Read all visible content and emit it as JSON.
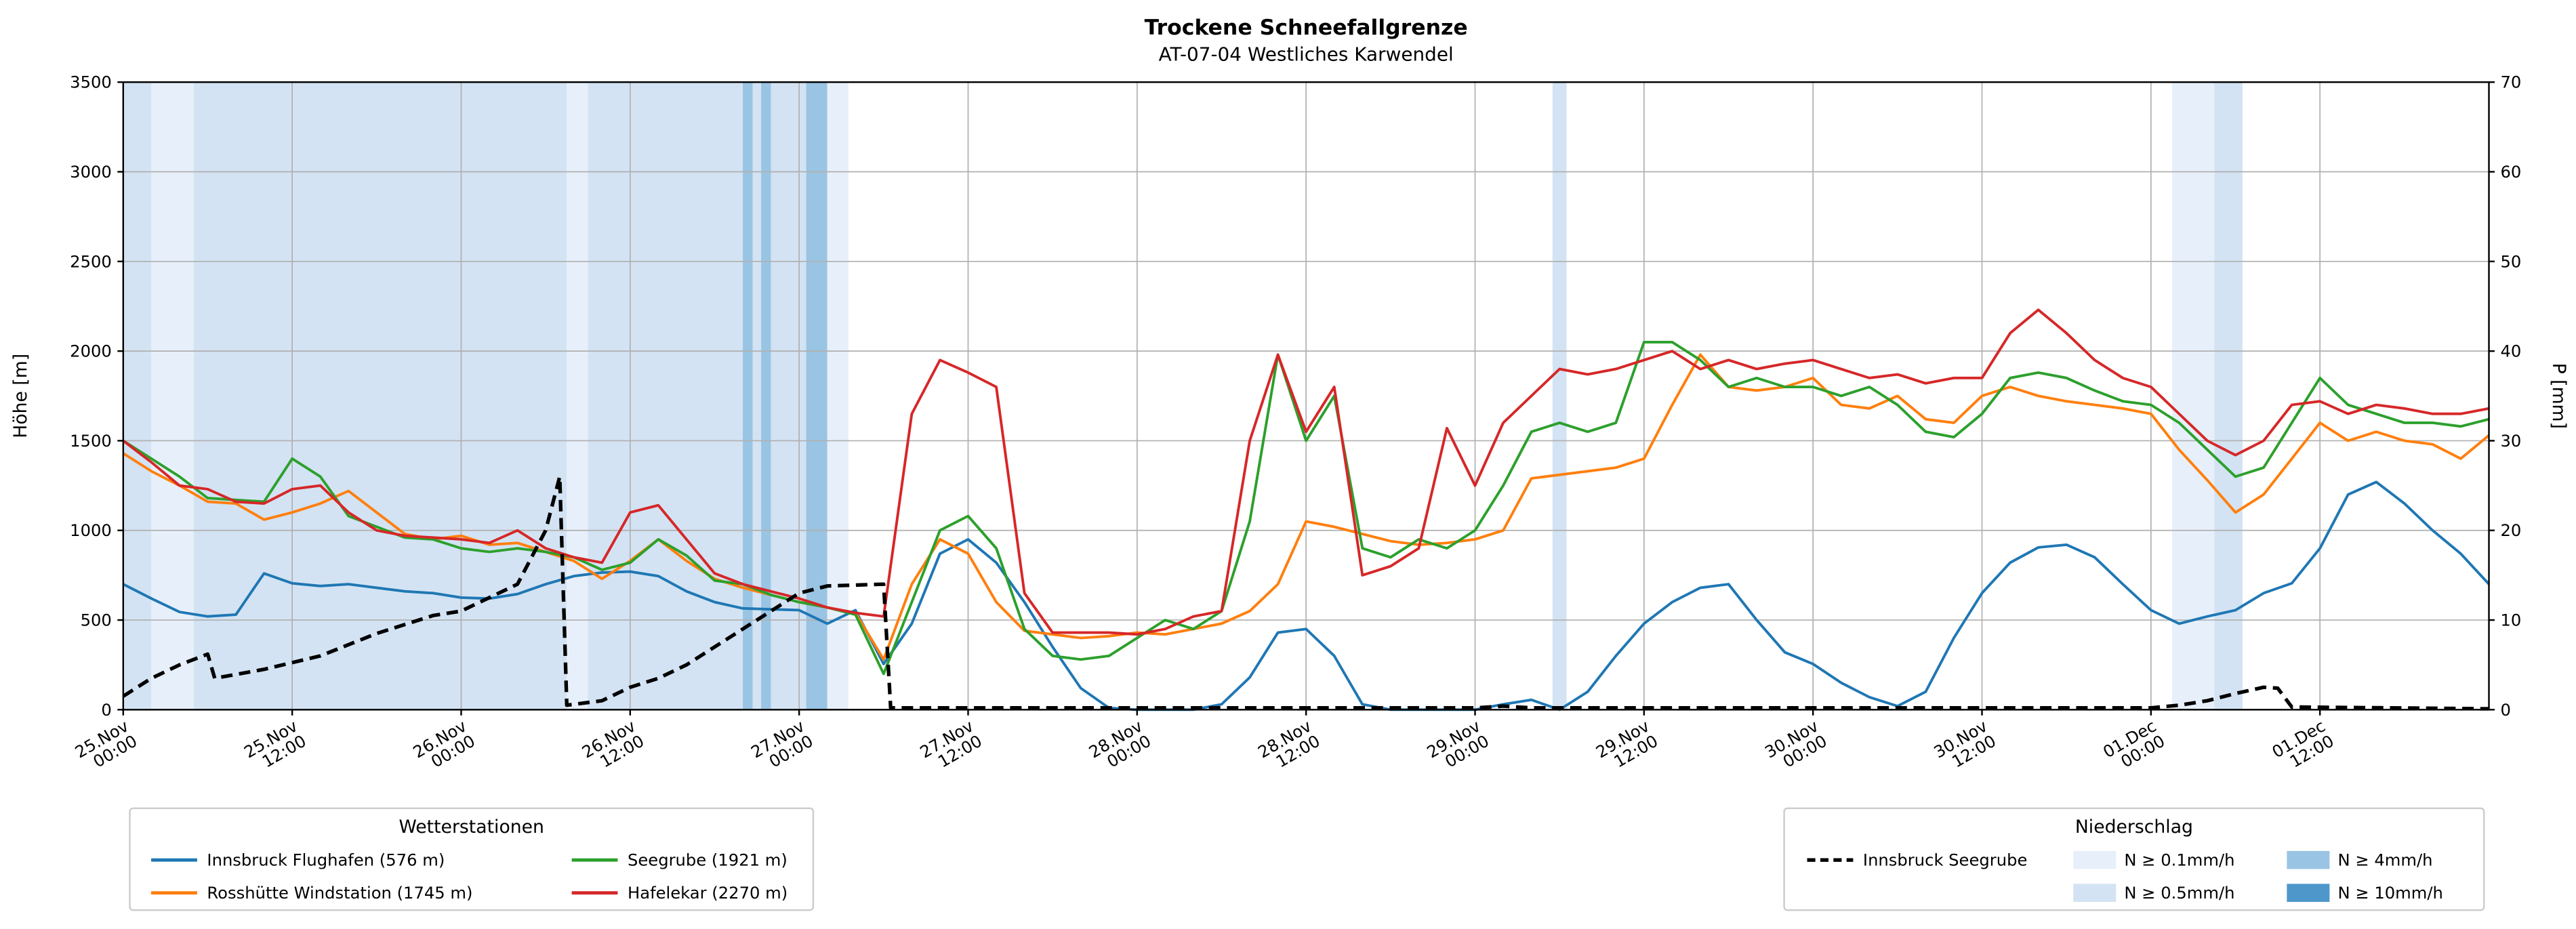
{
  "page": {
    "background": "#ffffff"
  },
  "chart_data": {
    "type": "line",
    "title": "Trockene Schneefallgrenze",
    "subtitle": "AT-07-04 Westliches Karwendel",
    "x_axis": {
      "total_hours": 168,
      "ticks": [
        {
          "h": 0,
          "lines": [
            "25.Nov",
            "00:00"
          ]
        },
        {
          "h": 12,
          "lines": [
            "25.Nov",
            "12:00"
          ]
        },
        {
          "h": 24,
          "lines": [
            "26.Nov",
            "00:00"
          ]
        },
        {
          "h": 36,
          "lines": [
            "26.Nov",
            "12:00"
          ]
        },
        {
          "h": 48,
          "lines": [
            "27.Nov",
            "00:00"
          ]
        },
        {
          "h": 60,
          "lines": [
            "27.Nov",
            "12:00"
          ]
        },
        {
          "h": 72,
          "lines": [
            "28.Nov",
            "00:00"
          ]
        },
        {
          "h": 84,
          "lines": [
            "28.Nov",
            "12:00"
          ]
        },
        {
          "h": 96,
          "lines": [
            "29.Nov",
            "00:00"
          ]
        },
        {
          "h": 108,
          "lines": [
            "29.Nov",
            "12:00"
          ]
        },
        {
          "h": 120,
          "lines": [
            "30.Nov",
            "00:00"
          ]
        },
        {
          "h": 132,
          "lines": [
            "30.Nov",
            "12:00"
          ]
        },
        {
          "h": 144,
          "lines": [
            "01.Dec",
            "00:00"
          ]
        },
        {
          "h": 156,
          "lines": [
            "01.Dec",
            "12:00"
          ]
        }
      ]
    },
    "y_left": {
      "label": "Höhe [m]",
      "min": 0,
      "max": 3500,
      "ticks": [
        0,
        500,
        1000,
        1500,
        2000,
        2500,
        3000,
        3500
      ]
    },
    "y_right": {
      "label": "P [mm]",
      "min": 0,
      "max": 70,
      "ticks": [
        0,
        10,
        20,
        30,
        40,
        50,
        60,
        70
      ]
    },
    "series": [
      {
        "id": "innsbruck-flughafen",
        "name": "Innsbruck Flughafen (576 m)",
        "color": "#1f77b4",
        "step_hours": 2,
        "values": [
          700,
          620,
          545,
          520,
          530,
          760,
          705,
          690,
          700,
          680,
          660,
          650,
          625,
          620,
          645,
          700,
          745,
          765,
          770,
          745,
          660,
          600,
          565,
          560,
          555,
          480,
          555,
          255,
          480,
          870,
          950,
          820,
          600,
          350,
          120,
          10,
          0,
          0,
          0,
          30,
          180,
          430,
          450,
          300,
          30,
          0,
          0,
          0,
          0,
          30,
          55,
          0,
          100,
          300,
          480,
          600,
          680,
          700,
          500,
          320,
          255,
          150,
          70,
          20,
          100,
          400,
          650,
          820,
          905,
          920,
          850,
          700,
          555,
          480,
          520,
          555,
          650,
          705,
          900,
          1200,
          1270,
          1150,
          1000,
          870,
          700
        ]
      },
      {
        "id": "rosshuette-windstation",
        "name": "Rosshütte Windstation (1745 m)",
        "color": "#ff7f0e",
        "step_hours": 2,
        "values": [
          1430,
          1330,
          1250,
          1160,
          1150,
          1060,
          1100,
          1150,
          1220,
          1100,
          980,
          950,
          970,
          920,
          930,
          880,
          830,
          730,
          830,
          950,
          830,
          730,
          680,
          640,
          600,
          570,
          540,
          280,
          700,
          950,
          870,
          600,
          440,
          420,
          400,
          410,
          430,
          420,
          450,
          480,
          550,
          700,
          1050,
          1020,
          980,
          940,
          920,
          930,
          950,
          1000,
          1290,
          1310,
          1330,
          1350,
          1400,
          1700,
          1980,
          1800,
          1780,
          1800,
          1850,
          1700,
          1680,
          1750,
          1620,
          1600,
          1750,
          1800,
          1750,
          1720,
          1700,
          1680,
          1650,
          1450,
          1280,
          1100,
          1200,
          1400,
          1600,
          1500,
          1550,
          1500,
          1480,
          1400,
          1530
        ]
      },
      {
        "id": "seegrube",
        "name": "Seegrube (1921 m)",
        "color": "#2ca02c",
        "step_hours": 2,
        "values": [
          1500,
          1400,
          1300,
          1180,
          1170,
          1160,
          1400,
          1300,
          1080,
          1020,
          960,
          950,
          900,
          880,
          900,
          880,
          850,
          780,
          820,
          950,
          860,
          720,
          700,
          640,
          600,
          570,
          530,
          200,
          600,
          1000,
          1080,
          900,
          450,
          300,
          280,
          300,
          400,
          500,
          450,
          550,
          1050,
          1980,
          1500,
          1750,
          900,
          850,
          950,
          900,
          1000,
          1250,
          1550,
          1600,
          1550,
          1600,
          2050,
          2050,
          1950,
          1800,
          1850,
          1800,
          1800,
          1750,
          1800,
          1700,
          1550,
          1520,
          1650,
          1850,
          1880,
          1850,
          1780,
          1720,
          1700,
          1600,
          1450,
          1300,
          1350,
          1600,
          1850,
          1700,
          1650,
          1600,
          1600,
          1580,
          1620
        ]
      },
      {
        "id": "hafelekar",
        "name": "Hafelekar (2270 m)",
        "color": "#d62728",
        "step_hours": 2,
        "values": [
          1500,
          1380,
          1250,
          1230,
          1160,
          1150,
          1230,
          1250,
          1100,
          1000,
          970,
          960,
          950,
          930,
          1000,
          900,
          850,
          820,
          1100,
          1140,
          950,
          760,
          700,
          660,
          620,
          570,
          540,
          520,
          1650,
          1950,
          1880,
          1800,
          650,
          430,
          430,
          430,
          420,
          450,
          520,
          550,
          1500,
          1980,
          1550,
          1800,
          750,
          800,
          900,
          1570,
          1250,
          1600,
          1750,
          1900,
          1870,
          1900,
          1950,
          2000,
          1900,
          1950,
          1900,
          1930,
          1950,
          1900,
          1850,
          1870,
          1820,
          1850,
          1850,
          2100,
          2230,
          2100,
          1950,
          1850,
          1800,
          1650,
          1500,
          1420,
          1500,
          1700,
          1720,
          1650,
          1700,
          1680,
          1650,
          1650,
          1680
        ]
      }
    ],
    "precip_line": {
      "name": "Innsbruck Seegrube",
      "color": "#000000",
      "style": "dashed",
      "points": [
        [
          0,
          1.5
        ],
        [
          2,
          3.5
        ],
        [
          4,
          5
        ],
        [
          6,
          6.2
        ],
        [
          6.5,
          3.5
        ],
        [
          10,
          4.5
        ],
        [
          14,
          6
        ],
        [
          18,
          8.5
        ],
        [
          22,
          10.5
        ],
        [
          24,
          11
        ],
        [
          26,
          12.5
        ],
        [
          28,
          14
        ],
        [
          30,
          20
        ],
        [
          31,
          26
        ],
        [
          31.5,
          0.5
        ],
        [
          34,
          1
        ],
        [
          36,
          2.5
        ],
        [
          38,
          3.5
        ],
        [
          40,
          5
        ],
        [
          42,
          7
        ],
        [
          44,
          9
        ],
        [
          46,
          11
        ],
        [
          48,
          13
        ],
        [
          50,
          13.8
        ],
        [
          54,
          14
        ],
        [
          54.5,
          0.2
        ],
        [
          96,
          0.2
        ],
        [
          98,
          0.4
        ],
        [
          100,
          0.2
        ],
        [
          144,
          0.2
        ],
        [
          146,
          0.5
        ],
        [
          148,
          1
        ],
        [
          150,
          1.8
        ],
        [
          152,
          2.5
        ],
        [
          153,
          2.4
        ],
        [
          154,
          0.3
        ],
        [
          168,
          0.1
        ]
      ]
    },
    "precip_levels": [
      {
        "key": "0.1",
        "label": "N ≥ 0.1mm/h",
        "color": "#e7f0fa"
      },
      {
        "key": "0.5",
        "label": "N ≥ 0.5mm/h",
        "color": "#d3e3f3"
      },
      {
        "key": "4",
        "label": "N ≥ 4mm/h",
        "color": "#9ac4e3"
      },
      {
        "key": "10",
        "label": "N ≥ 10mm/h",
        "color": "#4e97cb"
      }
    ],
    "precip_bands": [
      {
        "from": 0,
        "to": 2,
        "level": "0.5"
      },
      {
        "from": 2,
        "to": 5,
        "level": "0.1"
      },
      {
        "from": 5,
        "to": 31.5,
        "level": "0.5"
      },
      {
        "from": 31.5,
        "to": 33,
        "level": "0.1"
      },
      {
        "from": 33,
        "to": 44,
        "level": "0.5"
      },
      {
        "from": 44,
        "to": 44.7,
        "level": "4"
      },
      {
        "from": 44.7,
        "to": 45.3,
        "level": "0.5"
      },
      {
        "from": 45.3,
        "to": 46,
        "level": "4"
      },
      {
        "from": 46,
        "to": 48.5,
        "level": "0.5"
      },
      {
        "from": 48.5,
        "to": 50,
        "level": "4"
      },
      {
        "from": 50,
        "to": 51.5,
        "level": "0.1"
      },
      {
        "from": 101.5,
        "to": 102.5,
        "level": "0.5"
      },
      {
        "from": 145.5,
        "to": 148.5,
        "level": "0.1"
      },
      {
        "from": 148.5,
        "to": 150.5,
        "level": "0.5"
      }
    ],
    "legend_stations": {
      "title": "Wetterstationen"
    },
    "legend_precip": {
      "title": "Niederschlag"
    }
  }
}
